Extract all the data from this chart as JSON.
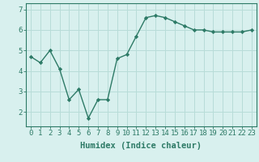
{
  "x": [
    0,
    1,
    2,
    3,
    4,
    5,
    6,
    7,
    8,
    9,
    10,
    11,
    12,
    13,
    14,
    15,
    16,
    17,
    18,
    19,
    20,
    21,
    22,
    23
  ],
  "y": [
    4.7,
    4.4,
    5.0,
    4.1,
    2.6,
    3.1,
    1.7,
    2.6,
    2.6,
    4.6,
    4.8,
    5.7,
    6.6,
    6.7,
    6.6,
    6.4,
    6.2,
    6.0,
    6.0,
    5.9,
    5.9,
    5.9,
    5.9,
    6.0
  ],
  "line_color": "#2d7a66",
  "marker": "D",
  "markersize": 2.2,
  "linewidth": 1.0,
  "bg_color": "#d8f0ee",
  "grid_color": "#b8dcd8",
  "xlabel": "Humidex (Indice chaleur)",
  "xlabel_fontsize": 7.5,
  "tick_fontsize": 6.5,
  "ylabel_ticks": [
    2,
    3,
    4,
    5,
    6,
    7
  ],
  "ytick_fontsize": 6.5,
  "xlim": [
    -0.5,
    23.5
  ],
  "ylim": [
    1.3,
    7.3
  ],
  "xtick_labels": [
    "0",
    "1",
    "2",
    "3",
    "4",
    "5",
    "6",
    "7",
    "8",
    "9",
    "10",
    "11",
    "12",
    "13",
    "14",
    "15",
    "16",
    "17",
    "18",
    "19",
    "20",
    "21",
    "22",
    "23"
  ]
}
